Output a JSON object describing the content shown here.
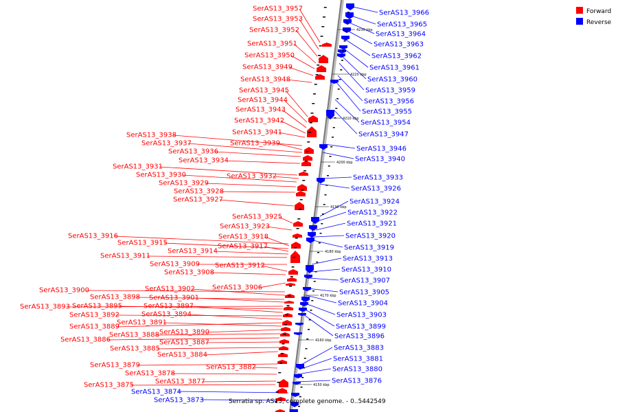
{
  "legend": {
    "forward_label": "Forward",
    "reverse_label": "Reverse",
    "forward_color": "#ff0000",
    "reverse_color": "#0000ff"
  },
  "caption": "Serratia sp. AS13, complete genome. - 0..5442549",
  "colors": {
    "axis": "#808080",
    "forward": "#ff0000",
    "reverse": "#0000ff"
  },
  "kbp_ticks": [
    "4230 kbp",
    "4220 kbp",
    "4210 kbp",
    "4200 kbp",
    "4190 kbp",
    "4180 kbp",
    "4170 kbp",
    "4160 kbp",
    "4150 kbp"
  ],
  "genes_reverse": [
    "SerAS13_3966",
    "SerAS13_3965",
    "SerAS13_3964",
    "SerAS13_3963",
    "SerAS13_3962",
    "SerAS13_3961",
    "SerAS13_3960",
    "SerAS13_3959",
    "SerAS13_3956",
    "SerAS13_3955",
    "SerAS13_3954",
    "SerAS13_3947",
    "SerAS13_3946",
    "SerAS13_3940",
    "SerAS13_3933",
    "SerAS13_3926",
    "SerAS13_3924",
    "SerAS13_3922",
    "SerAS13_3921",
    "SerAS13_3920",
    "SerAS13_3919",
    "SerAS13_3913",
    "SerAS13_3910",
    "SerAS13_3907",
    "SerAS13_3905",
    "SerAS13_3904",
    "SerAS13_3903",
    "SerAS13_3899",
    "SerAS13_3896",
    "SerAS13_3883",
    "SerAS13_3881",
    "SerAS13_3880",
    "SerAS13_3876",
    "SerAS13_3874",
    "SerAS13_3873"
  ],
  "genes_forward": [
    "SerAS13_3957",
    "SerAS13_3953",
    "SerAS13_3952",
    "SerAS13_3951",
    "SerAS13_3950",
    "SerAS13_3949",
    "SerAS13_3948",
    "SerAS13_3945",
    "SerAS13_3944",
    "SerAS13_3943",
    "SerAS13_3942",
    "SerAS13_3941",
    "SerAS13_3938",
    "SerAS13_3939",
    "SerAS13_3937",
    "SerAS13_3936",
    "SerAS13_3934",
    "SerAS13_3931",
    "SerAS13_3932",
    "SerAS13_3930",
    "SerAS13_3929",
    "SerAS13_3928",
    "SerAS13_3927",
    "SerAS13_3925",
    "SerAS13_3923",
    "SerAS13_3916",
    "SerAS13_3918",
    "SerAS13_3915",
    "SerAS13_3917",
    "SerAS13_3914",
    "SerAS13_3911",
    "SerAS13_3909",
    "SerAS13_3912",
    "SerAS13_3908",
    "SerAS13_3906",
    "SerAS13_3900",
    "SerAS13_3902",
    "SerAS13_3898",
    "SerAS13_3901",
    "SerAS13_3893",
    "SerAS13_3895",
    "SerAS13_3897",
    "SerAS13_3892",
    "SerAS13_3894",
    "SerAS13_3889",
    "SerAS13_3891",
    "SerAS13_3890",
    "SerAS13_3888",
    "SerAS13_3886",
    "SerAS13_3887",
    "SerAS13_3885",
    "SerAS13_3884",
    "SerAS13_3879",
    "SerAS13_3882",
    "SerAS13_3878",
    "SerAS13_3877",
    "SerAS13_3875"
  ]
}
